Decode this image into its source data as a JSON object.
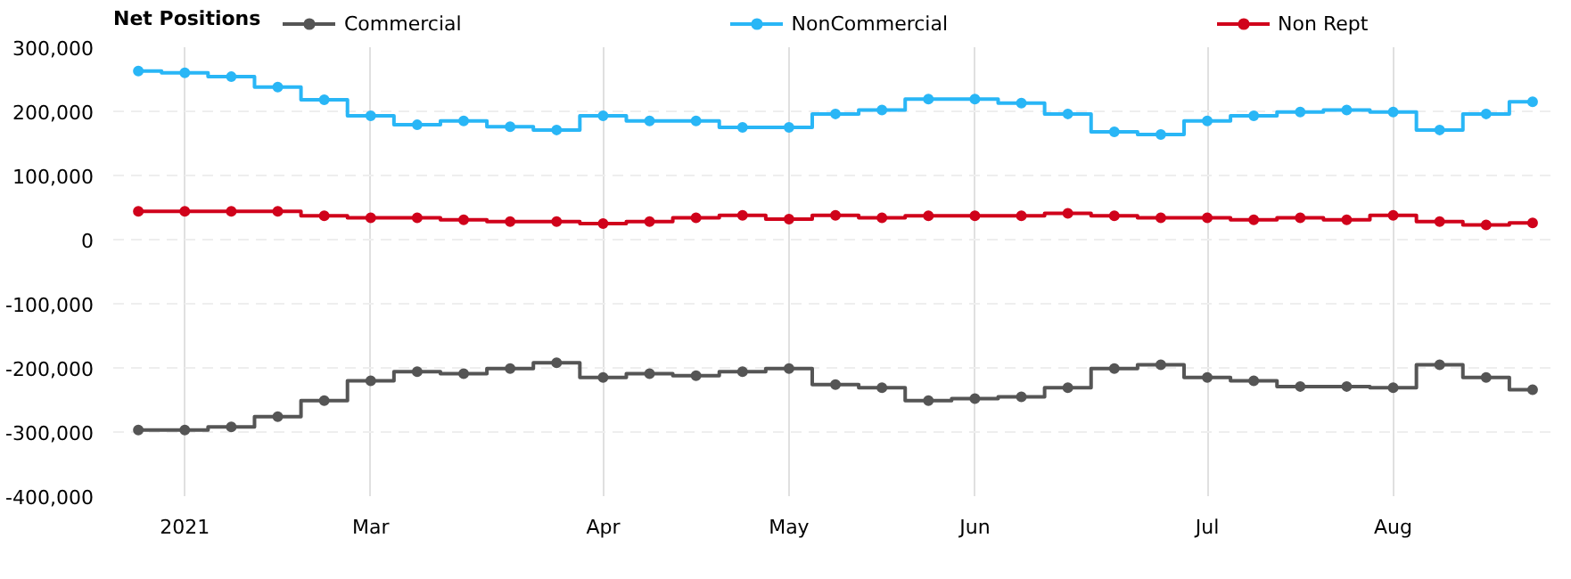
{
  "chart_data": {
    "type": "step",
    "legend_title": "Net Positions",
    "legend": "top",
    "marker": "circle",
    "grid": true,
    "categories": [
      null,
      "2021",
      null,
      null,
      null,
      "Mar",
      null,
      null,
      null,
      null,
      "Apr",
      null,
      null,
      null,
      "May",
      null,
      null,
      null,
      "Jun",
      null,
      null,
      null,
      null,
      "Jul",
      null,
      null,
      null,
      "Aug",
      null,
      null,
      null
    ],
    "ylim": [
      -400000,
      300000
    ],
    "yticks": [
      {
        "value": -400000,
        "label": "-400,000"
      },
      {
        "value": -300000,
        "label": "-300,000"
      },
      {
        "value": -200000,
        "label": "-200,000"
      },
      {
        "value": -100000,
        "label": "-100,000"
      },
      0,
      {
        "value": 100000,
        "label": "100,000"
      },
      {
        "value": 200000,
        "label": "200,000"
      },
      {
        "value": 300000,
        "label": "300,000"
      }
    ],
    "series": [
      {
        "name": "Commercial",
        "color": "#555555",
        "values": [
          -297000,
          -297000,
          -292000,
          -276000,
          -251000,
          -220000,
          -206000,
          -209000,
          -201000,
          -192000,
          -215000,
          -209000,
          -212000,
          -206000,
          -201000,
          -226000,
          -231000,
          -251000,
          -248000,
          -245000,
          -231000,
          -201000,
          -195000,
          -215000,
          -220000,
          -229000,
          -229000,
          -231000,
          -195000,
          -215000,
          -234000
        ]
      },
      {
        "name": "NonCommercial",
        "color": "#29b6f6",
        "values": [
          263000,
          260000,
          254000,
          238000,
          218000,
          193000,
          179000,
          185000,
          176000,
          171000,
          193000,
          185000,
          185000,
          175000,
          175000,
          196000,
          202000,
          219000,
          219000,
          213000,
          196000,
          168000,
          164000,
          185000,
          193000,
          199000,
          202000,
          199000,
          171000,
          196000,
          215000
        ]
      },
      {
        "name": "Non Rept",
        "color": "#d0021b",
        "values": [
          44000,
          44000,
          44000,
          44000,
          37000,
          34000,
          34000,
          31000,
          28000,
          28000,
          25000,
          28000,
          34000,
          38000,
          32000,
          38000,
          34000,
          37000,
          37000,
          37000,
          41000,
          37000,
          34000,
          34000,
          31000,
          34000,
          31000,
          38000,
          28000,
          23000,
          26000
        ]
      }
    ]
  }
}
